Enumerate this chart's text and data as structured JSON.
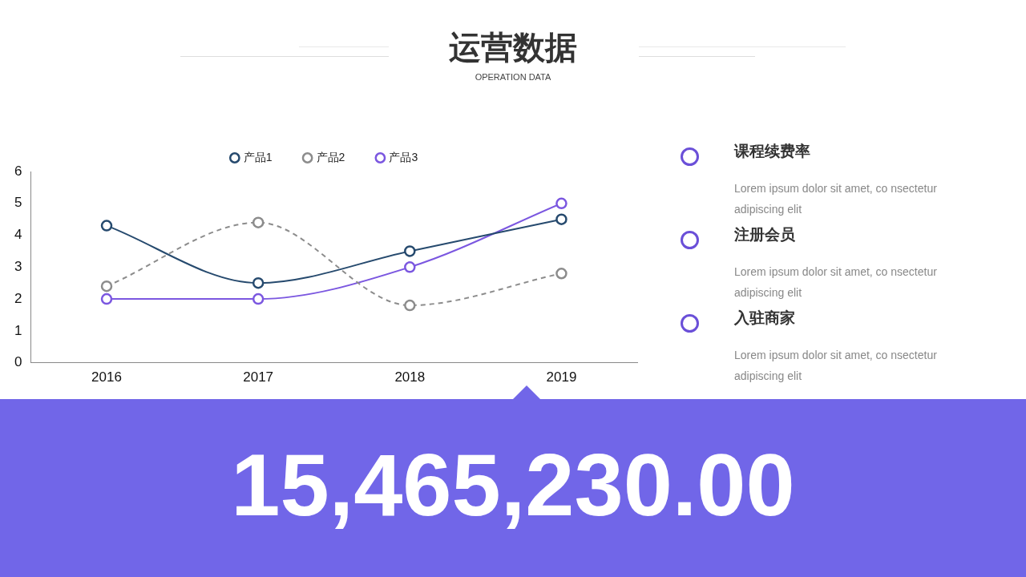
{
  "chart_data": {
    "type": "line",
    "title": "运营数据",
    "subtitle": "OPERATION DATA",
    "categories": [
      "2016",
      "2017",
      "2018",
      "2019"
    ],
    "series": [
      {
        "name": "产品1",
        "color": "#264a6e",
        "values": [
          4.3,
          2.5,
          3.5,
          4.5
        ],
        "line_style": "solid"
      },
      {
        "name": "产品2",
        "color": "#8c8c8c",
        "values": [
          2.4,
          4.4,
          1.8,
          2.8
        ],
        "line_style": "dashed"
      },
      {
        "name": "产品3",
        "color": "#7b57e0",
        "values": [
          2.0,
          2.0,
          3.0,
          5.0
        ],
        "line_style": "solid"
      }
    ],
    "ylim": [
      0,
      6
    ],
    "yticks": [
      0,
      1,
      2,
      3,
      4,
      5,
      6
    ],
    "grid": false,
    "legend": "top",
    "marker": "circle",
    "annotations": [
      "课程续费率",
      "Lorem ipsum dolor sit amet, co nsectetur adipiscing elit",
      "注册会员",
      "Lorem ipsum dolor sit amet, co nsectetur adipiscing elit",
      "入驻商家",
      "Lorem ipsum dolor sit amet, co nsectetur adipiscing elit",
      "15,465,230.00"
    ]
  }
}
